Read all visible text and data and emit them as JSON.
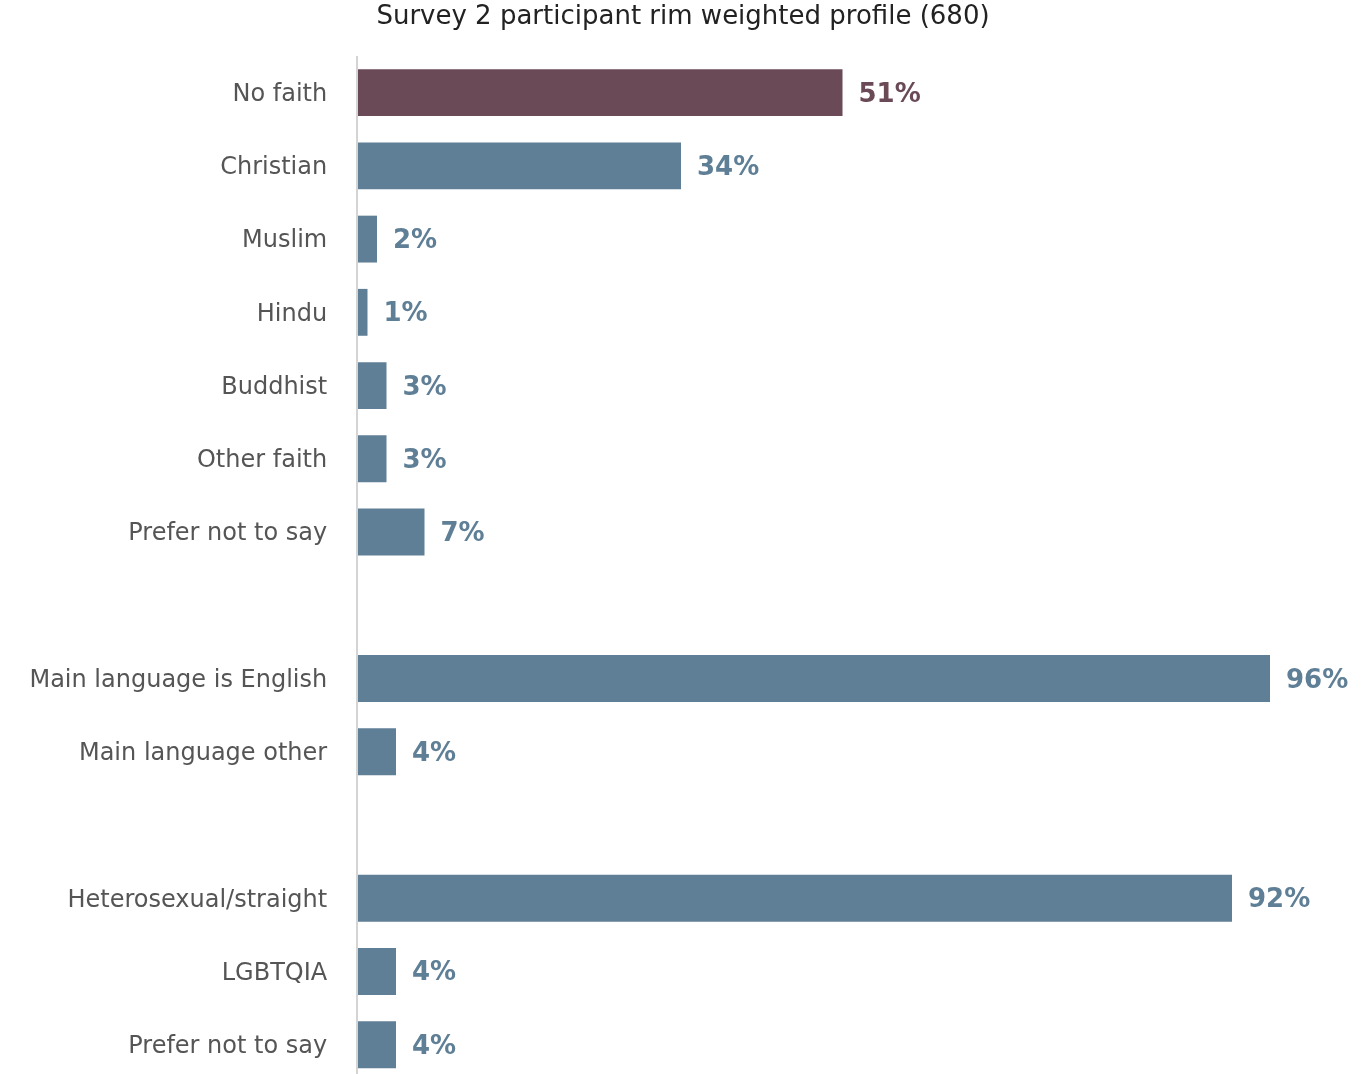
{
  "chart_data": {
    "type": "bar",
    "orientation": "horizontal",
    "title": "Survey 2 participant rim weighted profile (680)",
    "categories": [
      "No faith",
      "Christian",
      "Muslim",
      "Hindu",
      "Buddhist",
      "Other faith",
      "Prefer not to say",
      null,
      "Main language is English",
      "Main language other",
      null,
      "Heterosexual/straight",
      "LGBTQIA",
      "Prefer not to say"
    ],
    "values": [
      51,
      34,
      2,
      1,
      3,
      3,
      7,
      null,
      96,
      4,
      null,
      92,
      4,
      4
    ],
    "value_labels": [
      "51%",
      "34%",
      "2%",
      "1%",
      "3%",
      "3%",
      "7%",
      null,
      "96%",
      "4%",
      null,
      "92%",
      "4%",
      "4%"
    ],
    "colors": [
      "#6b4a57",
      "#5f7f96",
      "#5f7f96",
      "#5f7f96",
      "#5f7f96",
      "#5f7f96",
      "#5f7f96",
      "#5f7f96",
      "#5f7f96",
      "#5f7f96",
      "#5f7f96",
      "#5f7f96",
      "#5f7f96",
      "#5f7f96"
    ],
    "tick_labels": "y"
  }
}
